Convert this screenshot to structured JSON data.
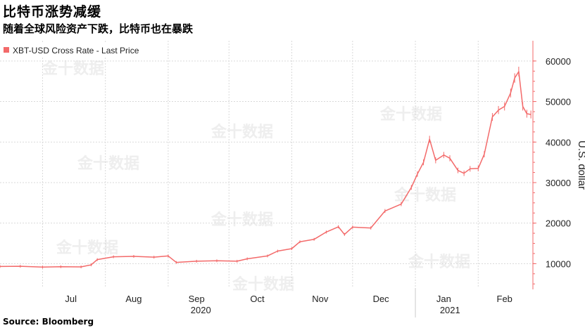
{
  "header": {
    "title": "比特币涨势减缓",
    "subtitle": "随着全球风险资产下跌，比特币也在暴跌"
  },
  "source": "Source: Bloomberg",
  "watermark": "金十数据",
  "colors": {
    "series": "#f36a6a",
    "grid": "#d9d9d9",
    "axis": "#f36a6a"
  },
  "chart_data": {
    "type": "line",
    "title": "比特币涨势减缓",
    "subtitle": "随着全球风险资产下跌，比特币也在暴跌",
    "ylabel": "U.S. dollar",
    "ylim": [
      4000,
      65000
    ],
    "yticks": [
      10000,
      20000,
      30000,
      40000,
      50000,
      60000
    ],
    "xlim": [
      "2020-06-10",
      "2021-02-28"
    ],
    "month_ticks": [
      {
        "label": "Jul",
        "date": "2020-07-15"
      },
      {
        "label": "Aug",
        "date": "2020-08-15"
      },
      {
        "label": "Sep",
        "date": "2020-09-15"
      },
      {
        "label": "Oct",
        "date": "2020-10-15"
      },
      {
        "label": "Nov",
        "date": "2020-11-15"
      },
      {
        "label": "Dec",
        "date": "2020-12-15"
      },
      {
        "label": "Jan",
        "date": "2021-01-15"
      },
      {
        "label": "Feb",
        "date": "2021-02-14"
      }
    ],
    "year_labels": [
      {
        "label": "2020",
        "date": "2020-10-01"
      },
      {
        "label": "2021",
        "date": "2021-02-01"
      }
    ],
    "gridlines": true,
    "legend": {
      "position": "top-left",
      "entries": [
        "XBT-USD Cross Rate - Last Price"
      ]
    },
    "series": [
      {
        "name": "XBT-USD Cross Rate - Last Price",
        "points": [
          [
            "2020-06-10",
            9300
          ],
          [
            "2020-06-20",
            9350
          ],
          [
            "2020-07-01",
            9150
          ],
          [
            "2020-07-10",
            9250
          ],
          [
            "2020-07-20",
            9200
          ],
          [
            "2020-07-25",
            9700
          ],
          [
            "2020-07-28",
            11000
          ],
          [
            "2020-08-05",
            11700
          ],
          [
            "2020-08-15",
            11800
          ],
          [
            "2020-08-25",
            11600
          ],
          [
            "2020-09-01",
            11900
          ],
          [
            "2020-09-05",
            10300
          ],
          [
            "2020-09-15",
            10600
          ],
          [
            "2020-09-25",
            10700
          ],
          [
            "2020-10-05",
            10600
          ],
          [
            "2020-10-10",
            11200
          ],
          [
            "2020-10-20",
            11900
          ],
          [
            "2020-10-25",
            13100
          ],
          [
            "2020-11-01",
            13700
          ],
          [
            "2020-11-05",
            15400
          ],
          [
            "2020-11-12",
            16000
          ],
          [
            "2020-11-18",
            17800
          ],
          [
            "2020-11-24",
            19100
          ],
          [
            "2020-11-27",
            17200
          ],
          [
            "2020-12-01",
            19000
          ],
          [
            "2020-12-10",
            18800
          ],
          [
            "2020-12-17",
            23000
          ],
          [
            "2020-12-25",
            24700
          ],
          [
            "2020-12-30",
            28800
          ],
          [
            "2021-01-02",
            32100
          ],
          [
            "2021-01-05",
            35000
          ],
          [
            "2021-01-08",
            40700
          ],
          [
            "2021-01-11",
            35500
          ],
          [
            "2021-01-15",
            36800
          ],
          [
            "2021-01-18",
            36000
          ],
          [
            "2021-01-22",
            33000
          ],
          [
            "2021-01-25",
            32300
          ],
          [
            "2021-01-28",
            33400
          ],
          [
            "2021-02-01",
            33500
          ],
          [
            "2021-02-04",
            37000
          ],
          [
            "2021-02-08",
            46200
          ],
          [
            "2021-02-11",
            47900
          ],
          [
            "2021-02-14",
            48800
          ],
          [
            "2021-02-17",
            52100
          ],
          [
            "2021-02-19",
            55800
          ],
          [
            "2021-02-21",
            57400
          ],
          [
            "2021-02-23",
            48800
          ],
          [
            "2021-02-25",
            47000
          ],
          [
            "2021-02-27",
            46800
          ]
        ]
      }
    ]
  }
}
